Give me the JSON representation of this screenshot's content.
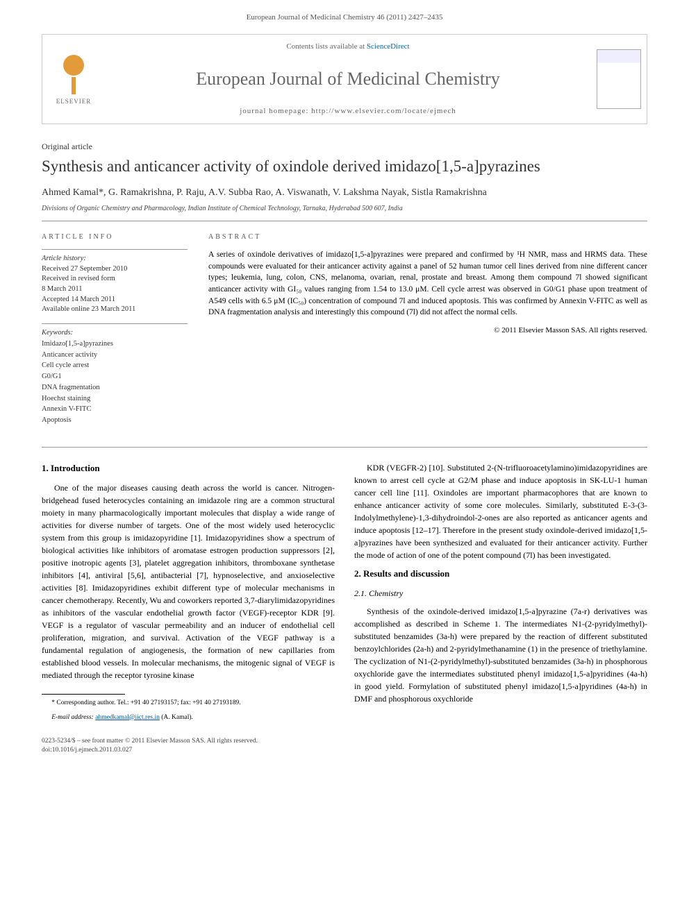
{
  "header": {
    "citation": "European Journal of Medicinal Chemistry 46 (2011) 2427–2435",
    "contents_prefix": "Contents lists available at ",
    "contents_link": "ScienceDirect",
    "journal_name": "European Journal of Medicinal Chemistry",
    "homepage_prefix": "journal homepage: ",
    "homepage_url": "http://www.elsevier.com/locate/ejmech",
    "elsevier_label": "ELSEVIER"
  },
  "article": {
    "type": "Original article",
    "title": "Synthesis and anticancer activity of oxindole derived imidazo[1,5-a]pyrazines",
    "authors": "Ahmed Kamal*, G. Ramakrishna, P. Raju, A.V. Subba Rao, A. Viswanath, V. Lakshma Nayak, Sistla Ramakrishna",
    "affiliation": "Divisions of Organic Chemistry and Pharmacology, Indian Institute of Chemical Technology, Tarnaka, Hyderabad 500 607, India"
  },
  "info": {
    "heading": "ARTICLE INFO",
    "history_label": "Article history:",
    "history": [
      "Received 27 September 2010",
      "Received in revised form",
      "8 March 2011",
      "Accepted 14 March 2011",
      "Available online 23 March 2011"
    ],
    "keywords_label": "Keywords:",
    "keywords": [
      "Imidazo[1,5-a]pyrazines",
      "Anticancer activity",
      "Cell cycle arrest",
      "G0/G1",
      "DNA fragmentation",
      "Hoechst staining",
      "Annexin V-FITC",
      "Apoptosis"
    ]
  },
  "abstract": {
    "heading": "ABSTRACT",
    "text": "A series of oxindole derivatives of imidazo[1,5-a]pyrazines were prepared and confirmed by ¹H NMR, mass and HRMS data. These compounds were evaluated for their anticancer activity against a panel of 52 human tumor cell lines derived from nine different cancer types; leukemia, lung, colon, CNS, melanoma, ovarian, renal, prostate and breast. Among them compound 7l showed significant anticancer activity with GI₅₀ values ranging from 1.54 to 13.0 μM. Cell cycle arrest was observed in G0/G1 phase upon treatment of A549 cells with 6.5 μM (IC₅₀) concentration of compound 7l and induced apoptosis. This was confirmed by Annexin V-FITC as well as DNA fragmentation analysis and interestingly this compound (7l) did not affect the normal cells.",
    "copyright": "© 2011 Elsevier Masson SAS. All rights reserved."
  },
  "sections": {
    "intro_heading": "1. Introduction",
    "intro_p1": "One of the major diseases causing death across the world is cancer. Nitrogen-bridgehead fused heterocycles containing an imidazole ring are a common structural moiety in many pharmacologically important molecules that display a wide range of activities for diverse number of targets. One of the most widely used heterocyclic system from this group is imidazopyridine [1]. Imidazopyridines show a spectrum of biological activities like inhibitors of aromatase estrogen production suppressors [2], positive inotropic agents [3], platelet aggregation inhibitors, thromboxane synthetase inhibitors [4], antiviral [5,6], antibacterial [7], hypnoselective, and anxioselective activities [8]. Imidazopyridines exhibit different type of molecular mechanisms in cancer chemotherapy. Recently, Wu and coworkers reported 3,7-diarylimidazopyridines as inhibitors of the vascular endothelial growth factor (VEGF)-receptor KDR [9]. VEGF is a regulator of vascular permeability and an inducer of endothelial cell proliferation, migration, and survival. Activation of the VEGF pathway is a fundamental regulation of angiogenesis, the formation of new capillaries from established blood vessels. In molecular mechanisms, the mitogenic signal of VEGF is mediated through the receptor tyrosine kinase",
    "col2_p1": "KDR (VEGFR-2) [10]. Substituted 2-(N-trifluoroacetylamino)imidazopyridines are known to arrest cell cycle at G2/M phase and induce apoptosis in SK-LU-1 human cancer cell line [11]. Oxindoles are important pharmacophores that are known to enhance anticancer activity of some core molecules. Similarly, substituted E-3-(3-Indolylmethylene)-1,3-dihydroindol-2-ones are also reported as anticancer agents and induce apoptosis [12–17]. Therefore in the present study oxindole-derived imidazo[1,5-a]pyrazines have been synthesized and evaluated for their anticancer activity. Further the mode of action of one of the potent compound (7l) has been investigated.",
    "results_heading": "2. Results and discussion",
    "chem_heading": "2.1. Chemistry",
    "chem_p1": "Synthesis of the oxindole-derived imidazo[1,5-a]pyrazine (7a-r) derivatives was accomplished as described in Scheme 1. The intermediates N1-(2-pyridylmethyl)-substituted benzamides (3a-h) were prepared by the reaction of different substituted benzoylchlorides (2a-h) and 2-pyridylmethanamine (1) in the presence of triethylamine. The cyclization of N1-(2-pyridylmethyl)-substituted benzamides (3a-h) in phosphorous oxychloride gave the intermediates substituted phenyl imidazo[1,5-a]pyridines (4a-h) in good yield. Formylation of substituted phenyl imidazo[1,5-a]pyridines (4a-h) in DMF and phosphorous oxychloride"
  },
  "footnote": {
    "corr": "* Corresponding author. Tel.: +91 40 27193157; fax: +91 40 27193189.",
    "email_label": "E-mail address: ",
    "email": "ahmedkamal@iict.res.in",
    "email_suffix": " (A. Kamal)."
  },
  "footer": {
    "line1": "0223-5234/$ – see front matter © 2011 Elsevier Masson SAS. All rights reserved.",
    "line2": "doi:10.1016/j.ejmech.2011.03.027"
  },
  "colors": {
    "link": "#0055aa",
    "text": "#000000",
    "muted": "#666666",
    "rule": "#999999"
  }
}
